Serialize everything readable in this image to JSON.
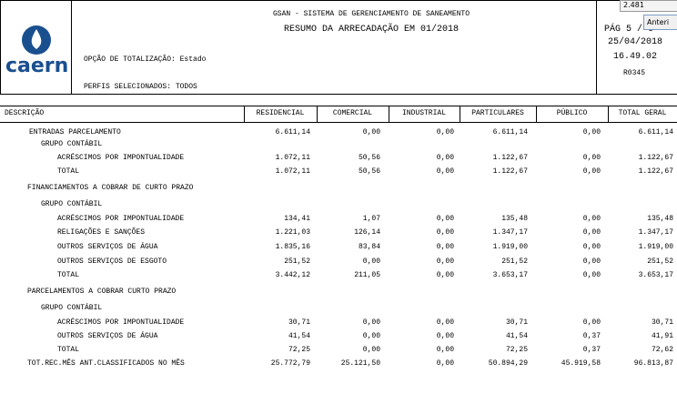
{
  "header": {
    "logo": "caern",
    "system": "GSAN - SISTEMA DE GERENCIAMENTO DE SANEAMENTO",
    "title": "RESUMO DA ARRECADAÇÃO EM  01/2018",
    "option": "OPÇÃO DE TOTALIZAÇÃO: Estado",
    "profiles": "PERFIS SELECIONADOS:  TODOS",
    "page": "PÁG 5 / 6",
    "date": "25/04/2018",
    "time": "16.49.02",
    "report": "R0345"
  },
  "overlay": {
    "tooltip": "2.481",
    "button": "Anteri"
  },
  "table": {
    "columns": [
      "DESCRIÇÃO",
      "RESIDENCIAL",
      "COMERCIAL",
      "INDUSTRIAL",
      "PARTICULARES",
      "PÚBLICO",
      "TOTAL GERAL"
    ],
    "rows": [
      [
        "ENTRADAS PARCELAMENTO",
        "6.611,14",
        "0,00",
        "0,00",
        "6.611,14",
        "0,00",
        "6.611,14"
      ],
      [
        "GRUPO CONTÁBIL"
      ],
      [
        "ACRÉSCIMOS POR IMPONTUALIDADE",
        "1.072,11",
        "50,56",
        "0,00",
        "1.122,67",
        "0,00",
        "1.122,67"
      ],
      [
        "TOTAL",
        "1.072,11",
        "50,56",
        "0,00",
        "1.122,67",
        "0,00",
        "1.122,67"
      ],
      [
        "FINANCIAMENTOS A COBRAR DE CURTO PRAZO"
      ],
      [
        "GRUPO CONTÁBIL"
      ],
      [
        "ACRÉSCIMOS POR IMPONTUALIDADE",
        "134,41",
        "1,07",
        "0,00",
        "135,48",
        "0,00",
        "135,48"
      ],
      [
        "RELIGAÇÕES E SANÇÕES",
        "1.221,03",
        "126,14",
        "0,00",
        "1.347,17",
        "0,00",
        "1.347,17"
      ],
      [
        "OUTROS SERVIÇOS DE ÁGUA",
        "1.835,16",
        "83,84",
        "0,00",
        "1.919,00",
        "0,00",
        "1.919,00"
      ],
      [
        "OUTROS SERVIÇOS DE ESGOTO",
        "251,52",
        "0,00",
        "0,00",
        "251,52",
        "0,00",
        "251,52"
      ],
      [
        "TOTAL",
        "3.442,12",
        "211,05",
        "0,00",
        "3.653,17",
        "0,00",
        "3.653,17"
      ],
      [
        "PARCELAMENTOS A COBRAR CURTO PRAZO"
      ],
      [
        "GRUPO CONTÁBIL"
      ],
      [
        "ACRÉSCIMOS POR IMPONTUALIDADE",
        "30,71",
        "0,00",
        "0,00",
        "30,71",
        "0,00",
        "30,71"
      ],
      [
        "OUTROS SERVIÇOS DE ÁGUA",
        "41,54",
        "0,00",
        "0,00",
        "41,54",
        "0,37",
        "41,91"
      ],
      [
        "TOTAL",
        "72,25",
        "0,00",
        "0,00",
        "72,25",
        "0,37",
        "72,62"
      ],
      [
        "TOT.REC.MÊS ANT.CLASSIFICADOS NO MÊS",
        "25.772,79",
        "25.121,50",
        "0,00",
        "50.894,29",
        "45.919,58",
        "96.813,87"
      ]
    ]
  }
}
